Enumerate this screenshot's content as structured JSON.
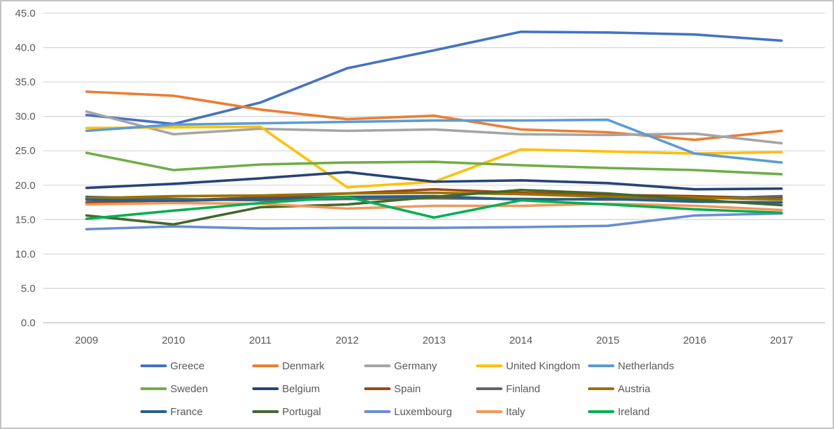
{
  "chart_data": {
    "type": "line",
    "title": "",
    "legend_position": "bottom",
    "grid": true,
    "categories": [
      "2009",
      "2010",
      "2011",
      "2012",
      "2013",
      "2014",
      "2015",
      "2016",
      "2017"
    ],
    "y_axis": {
      "min": 0,
      "max": 45,
      "step": 5,
      "tick_labels": [
        "0.0",
        "5.0",
        "10.0",
        "15.0",
        "20.0",
        "25.0",
        "30.0",
        "35.0",
        "40.0",
        "45.0"
      ]
    },
    "series": [
      {
        "name": "Greece",
        "color": "#4472C4",
        "values": [
          30.2,
          28.9,
          32.0,
          37.0,
          39.6,
          42.3,
          42.2,
          41.9,
          41.0
        ]
      },
      {
        "name": "Denmark",
        "color": "#ED7D31",
        "values": [
          33.6,
          33.0,
          31.0,
          29.6,
          30.1,
          28.1,
          27.7,
          26.6,
          27.9
        ]
      },
      {
        "name": "Germany",
        "color": "#A5A5A5",
        "values": [
          30.7,
          27.4,
          28.2,
          27.9,
          28.1,
          27.4,
          27.3,
          27.5,
          26.1
        ]
      },
      {
        "name": "United Kingdom",
        "color": "#FFC000",
        "values": [
          28.3,
          28.4,
          28.5,
          19.7,
          20.5,
          25.2,
          24.9,
          24.6,
          24.8
        ]
      },
      {
        "name": "Netherlands",
        "color": "#5B9BD5",
        "values": [
          27.9,
          28.8,
          29.0,
          29.2,
          29.4,
          29.4,
          29.5,
          24.6,
          23.3
        ]
      },
      {
        "name": "Sweden",
        "color": "#70AD47",
        "values": [
          24.7,
          22.2,
          23.0,
          23.3,
          23.4,
          22.9,
          22.5,
          22.2,
          21.6
        ]
      },
      {
        "name": "Belgium",
        "color": "#264478",
        "values": [
          19.6,
          20.2,
          21.0,
          21.9,
          20.5,
          20.7,
          20.3,
          19.4,
          19.5
        ]
      },
      {
        "name": "Spain",
        "color": "#9E480E",
        "values": [
          17.5,
          17.8,
          18.2,
          18.8,
          19.4,
          18.9,
          18.6,
          18.4,
          18.1
        ]
      },
      {
        "name": "Finland",
        "color": "#636363",
        "values": [
          18.3,
          18.0,
          17.8,
          18.0,
          18.1,
          18.0,
          17.9,
          18.0,
          18.4
        ]
      },
      {
        "name": "Austria",
        "color": "#997300",
        "values": [
          18.1,
          18.4,
          18.5,
          18.8,
          18.9,
          18.7,
          18.3,
          18.2,
          17.9
        ]
      },
      {
        "name": "France",
        "color": "#255E91",
        "values": [
          17.9,
          17.7,
          18.0,
          18.3,
          18.4,
          17.9,
          18.0,
          17.6,
          17.5
        ]
      },
      {
        "name": "Portugal",
        "color": "#43682B",
        "values": [
          15.6,
          14.3,
          16.8,
          17.2,
          18.3,
          19.3,
          18.8,
          17.9,
          17.1
        ]
      },
      {
        "name": "Luxembourg",
        "color": "#698ED0",
        "values": [
          13.6,
          14.0,
          13.7,
          13.8,
          13.8,
          13.9,
          14.1,
          15.6,
          15.9
        ]
      },
      {
        "name": "Italy",
        "color": "#F1975A",
        "values": [
          17.2,
          17.4,
          17.3,
          16.6,
          17.0,
          17.0,
          17.3,
          17.0,
          16.4
        ]
      },
      {
        "name": "Ireland",
        "color": "#00B050",
        "values": [
          15.1,
          16.3,
          17.4,
          18.3,
          15.3,
          17.8,
          17.2,
          16.5,
          16.0
        ]
      }
    ],
    "style_colors": {
      "gridline": "#D9D9D9",
      "baseline": "#BFBFBF",
      "axis_text": "#595959",
      "frame_border": "#C3C3C3",
      "background": "#FFFFFF"
    }
  }
}
